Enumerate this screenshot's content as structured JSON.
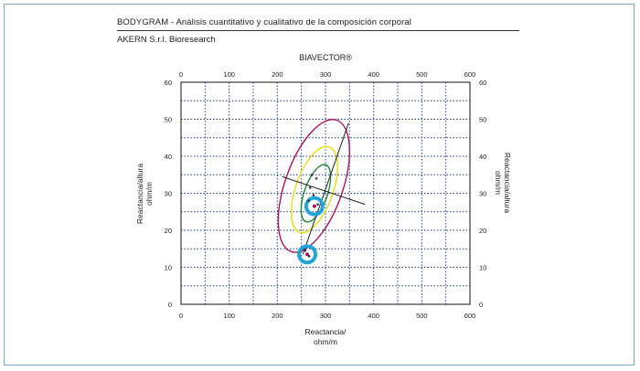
{
  "header": {
    "title": "BODYGRAM - Análisis cuantitativo y cualitativo de la composición corporal",
    "subtitle": "AKERN S.r.l. Bioresearch"
  },
  "chart_data": {
    "type": "scatter",
    "title": "BIAVECTOR®",
    "xlabel_line1": "Reactancia/",
    "xlabel_line2": "ohm/m",
    "ylabel_line1": "Reactancia/altura",
    "ylabel_line2": "ohm/m",
    "xlim": [
      0,
      600
    ],
    "ylim": [
      0,
      60
    ],
    "x_ticks": [
      0,
      100,
      200,
      300,
      400,
      500,
      600
    ],
    "y_ticks": [
      0,
      10,
      20,
      30,
      40,
      50,
      60
    ],
    "grid": true,
    "colors": {
      "ellipse_95": "#b0135a",
      "ellipse_75": "#e8e000",
      "ellipse_50": "#1e8a2e",
      "axes_lines": "#222222",
      "highlight": "#1fa6dc",
      "grid": "#1e3f8a"
    },
    "tolerance_ellipses": [
      {
        "name": "95%",
        "center": [
          276,
          32
        ],
        "semi_x": 100,
        "semi_y": 18.5
      },
      {
        "name": "75%",
        "center": [
          277,
          31
        ],
        "semi_x": 65,
        "semi_y": 12
      },
      {
        "name": "50%",
        "center": [
          280,
          30
        ],
        "semi_x": 40,
        "semi_y": 8
      }
    ],
    "major_axis": {
      "from": [
        253,
        13.5
      ],
      "to": [
        348,
        49
      ]
    },
    "minor_axis": {
      "from": [
        210,
        34.5
      ],
      "to": [
        382,
        27
      ]
    },
    "points": [
      {
        "x": 277,
        "y": 26.5,
        "highlight": true
      },
      {
        "x": 262,
        "y": 13.5,
        "highlight": true
      },
      {
        "x": 272,
        "y": 35
      },
      {
        "x": 281,
        "y": 34
      },
      {
        "x": 268,
        "y": 31.5
      },
      {
        "x": 275,
        "y": 29.5
      },
      {
        "x": 265,
        "y": 28
      },
      {
        "x": 284,
        "y": 27
      },
      {
        "x": 258,
        "y": 14.5
      },
      {
        "x": 266,
        "y": 13
      }
    ]
  }
}
